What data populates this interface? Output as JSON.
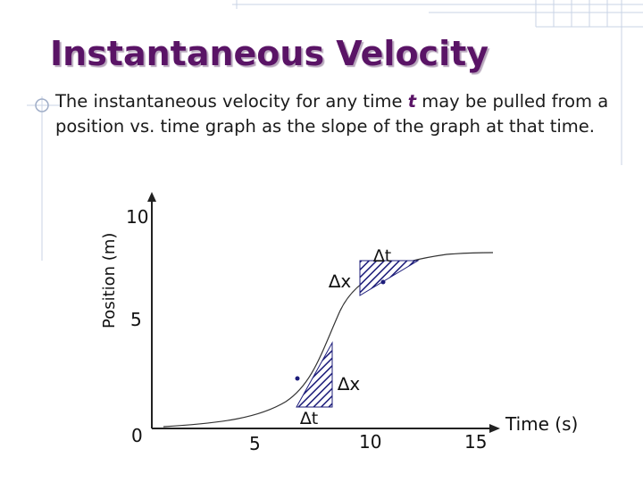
{
  "slide": {
    "title": "Instantaneous Velocity",
    "body_before": "The instantaneous velocity for any time ",
    "body_var": "t",
    "body_after": " may be pulled from a position vs. time graph as the slope of the graph at that time."
  },
  "graph": {
    "y_axis_label": "Position (m)",
    "x_axis_label": "Time (s)",
    "y_ticks": [
      "10",
      "5",
      "0"
    ],
    "x_ticks": [
      "5",
      "10",
      "15"
    ],
    "triangle_upper": {
      "dx_label": "∆x",
      "dt_label": "∆t"
    },
    "triangle_lower": {
      "dx_label": "∆x",
      "dt_label": "∆t"
    }
  },
  "colors": {
    "title": "#5a1466",
    "hatch": "#1c1c7a",
    "deco_grid": "#c9d3e6"
  }
}
